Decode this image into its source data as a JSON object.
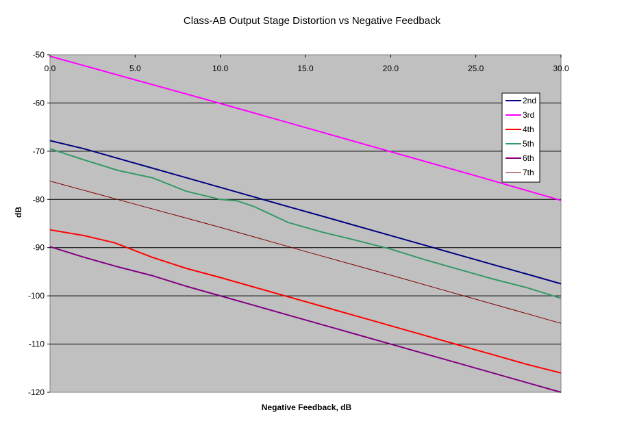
{
  "chart_data": {
    "type": "line",
    "title": "Class-AB Output Stage Distortion vs Negative Feedback",
    "xlabel": "Negative Feedback, dB",
    "ylabel": "dB",
    "xlim": [
      0,
      30
    ],
    "ylim": [
      -120,
      -50
    ],
    "xticks": [
      "0.0",
      "5.0",
      "10.0",
      "15.0",
      "20.0",
      "25.0",
      "30.0"
    ],
    "yticks": [
      "-50",
      "-60",
      "-70",
      "-80",
      "-90",
      "-100",
      "-110",
      "-120"
    ],
    "grid": "horizontal",
    "legend": "right",
    "plot_background": "#c0c0c0",
    "series": [
      {
        "name": "2nd",
        "color": "#000080",
        "width": 2,
        "x": [
          0,
          2,
          4,
          6,
          8,
          10,
          12,
          14,
          16,
          18,
          20,
          22,
          24,
          26,
          28,
          30
        ],
        "y": [
          -67.8,
          -69.5,
          -71.5,
          -73.5,
          -75.5,
          -77.5,
          -79.5,
          -81.5,
          -83.5,
          -85.5,
          -87.5,
          -89.5,
          -91.5,
          -93.5,
          -95.5,
          -97.5
        ]
      },
      {
        "name": "3rd",
        "color": "#ff00ff",
        "width": 2,
        "x": [
          0,
          5,
          10,
          15,
          20,
          25,
          30
        ],
        "y": [
          -50.3,
          -55.2,
          -60.1,
          -65.1,
          -70.1,
          -75.1,
          -80.2
        ]
      },
      {
        "name": "4th",
        "color": "#ff0000",
        "width": 2,
        "x": [
          0,
          2,
          3.8,
          6,
          8,
          10,
          12,
          14,
          16,
          18,
          20,
          22,
          24,
          26,
          28,
          30
        ],
        "y": [
          -86.3,
          -87.5,
          -89,
          -92,
          -94.3,
          -96.2,
          -98.2,
          -100.2,
          -102.2,
          -104.2,
          -106.2,
          -108.2,
          -110.2,
          -112.2,
          -114.2,
          -116
        ]
      },
      {
        "name": "5th",
        "color": "#339966",
        "width": 2,
        "x": [
          0,
          2,
          4,
          6,
          8,
          10,
          11,
          12,
          14,
          16,
          18,
          20,
          22,
          24,
          26,
          28,
          30
        ],
        "y": [
          -69.5,
          -71.8,
          -74,
          -75.5,
          -78.3,
          -80,
          -80.3,
          -81.5,
          -84.8,
          -86.8,
          -88.5,
          -90.3,
          -92.5,
          -94.5,
          -96.5,
          -98.3,
          -100.5
        ]
      },
      {
        "name": "6th",
        "color": "#800080",
        "width": 2,
        "x": [
          0,
          2,
          4,
          6,
          8,
          10,
          12,
          14,
          16,
          18,
          20,
          22,
          24,
          26,
          28,
          30
        ],
        "y": [
          -89.8,
          -92,
          -94,
          -95.8,
          -98,
          -100,
          -102,
          -104,
          -106,
          -108,
          -110,
          -112,
          -114,
          -116,
          -118,
          -120
        ]
      },
      {
        "name": "7th",
        "color": "#800000",
        "width": 1,
        "x": [
          0,
          5,
          10,
          15,
          20,
          25,
          30
        ],
        "y": [
          -76.2,
          -81,
          -85.8,
          -90.8,
          -95.7,
          -100.7,
          -105.7
        ]
      }
    ]
  }
}
